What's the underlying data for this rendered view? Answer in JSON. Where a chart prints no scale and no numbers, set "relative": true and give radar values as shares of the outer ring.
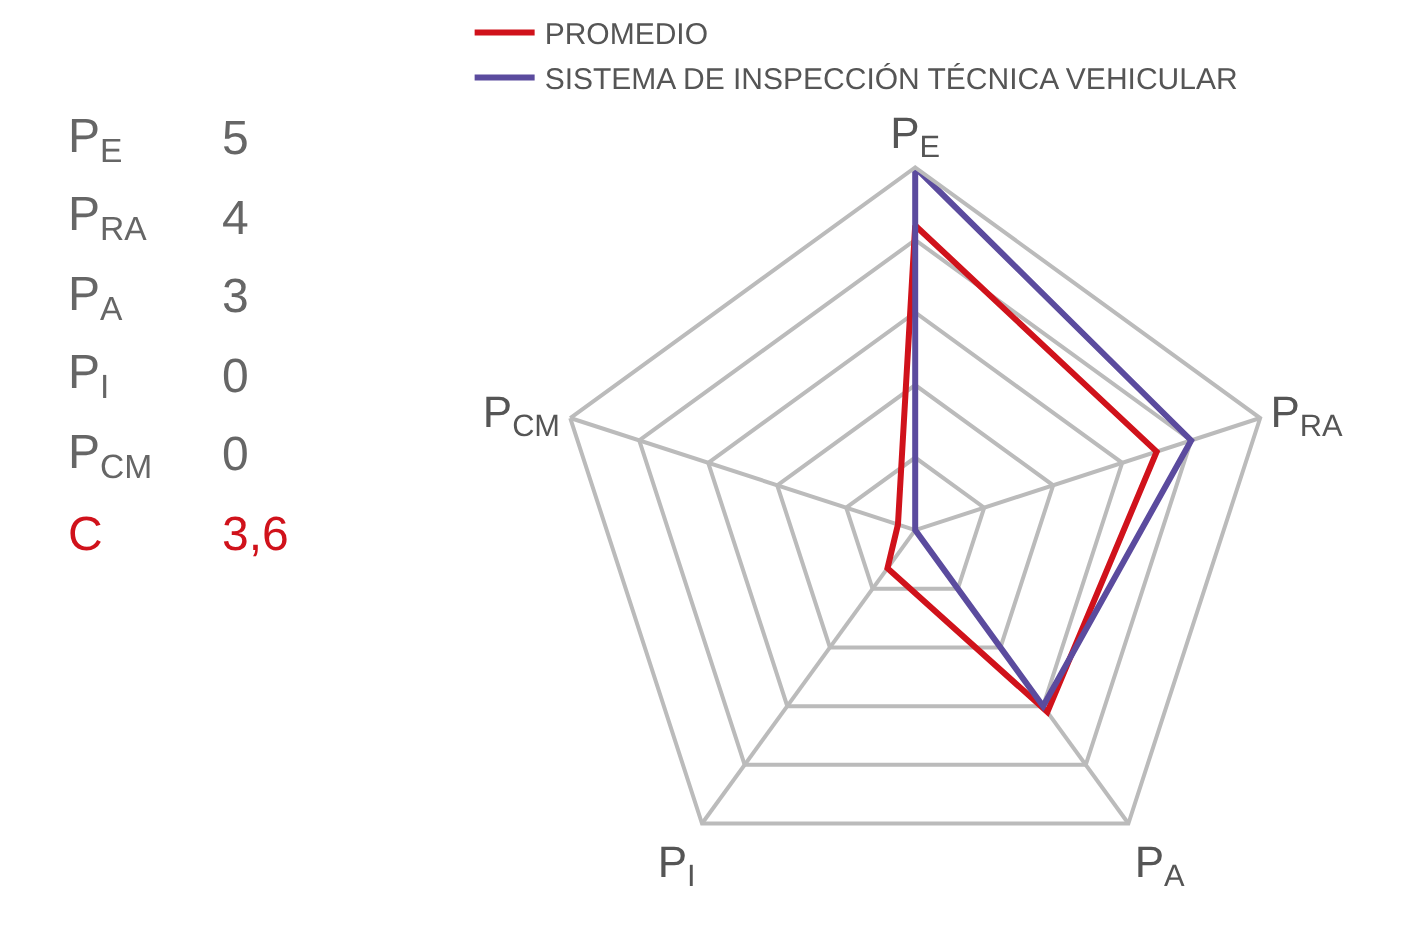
{
  "chart_data": [
    {
      "type": "other",
      "annotations": [
        "P$_{E}$",
        "5",
        "P$_{RA}$",
        "4",
        "P$_{A}$",
        "3",
        "P$_{I}$",
        "0",
        "P$_{CM}$",
        "0",
        "C",
        "3,6"
      ]
    },
    {
      "type": "radar",
      "relative": true,
      "categories": [
        "P$_{E}$",
        "P$_{RA}$",
        "P$_{A}$",
        "P$_{I}$",
        "P$_{CM}$"
      ],
      "series": [
        {
          "name": "PROMEDIO",
          "color": "#d0121b",
          "values": [
            0.84,
            0.7,
            0.62,
            0.13,
            0.05
          ]
        },
        {
          "name": "SISTEMA DE INSPECCIÓN TÉCNICA VEHICULAR",
          "color": "#5b4b9e",
          "values": [
            1,
            0.8,
            0.6,
            0,
            0
          ]
        }
      ],
      "legend": "top",
      "grid": true,
      "marker": "none",
      "line_style": "solid"
    }
  ]
}
